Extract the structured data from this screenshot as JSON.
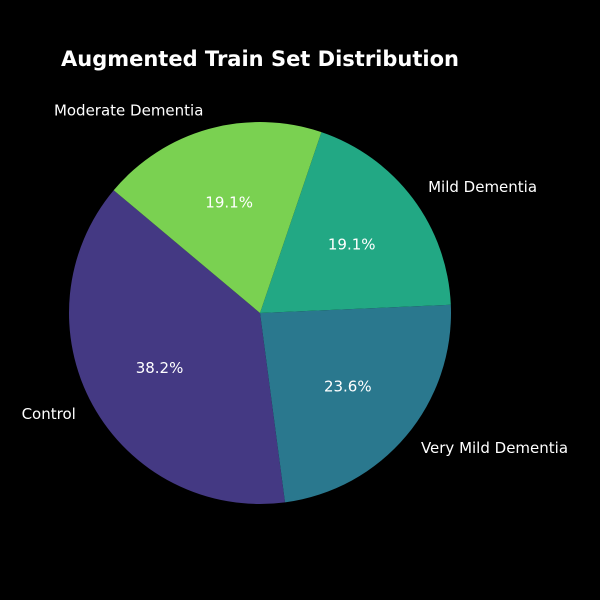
{
  "chart_data": {
    "type": "pie",
    "title": "Augmented Train Set Distribution",
    "categories": [
      "Control",
      "Very Mild Dementia",
      "Mild Dementia",
      "Moderate Dementia"
    ],
    "values": [
      38.2,
      23.6,
      19.1,
      19.1
    ],
    "value_labels": [
      "38.2%",
      "23.6%",
      "19.1%",
      "19.1%"
    ],
    "colors": [
      "#443983",
      "#2A788E",
      "#22A884",
      "#7AD151"
    ],
    "start_angle_deg": 140,
    "direction": "counterclockwise",
    "background": "#000000"
  }
}
